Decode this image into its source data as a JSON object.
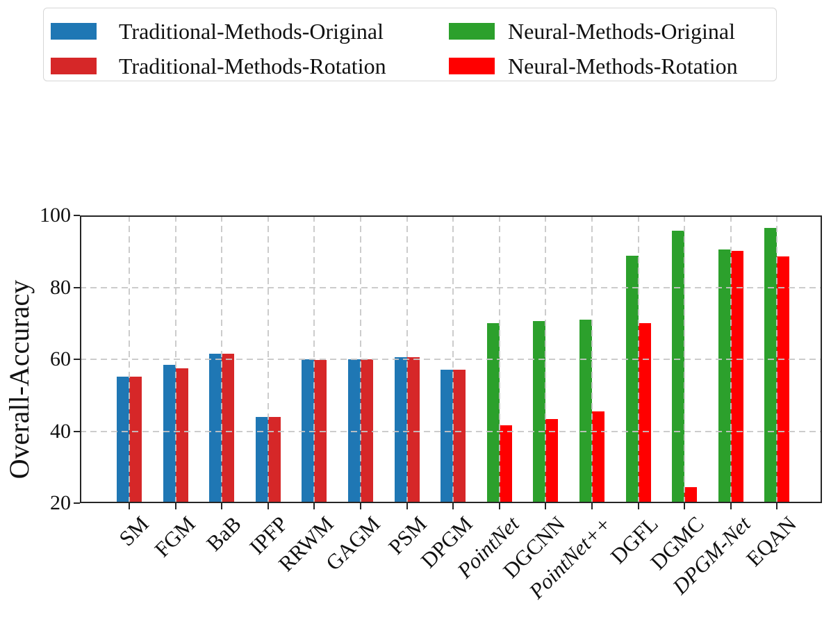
{
  "chart_data": {
    "type": "bar",
    "title": "",
    "xlabel": "",
    "ylabel": "Overall-Accuracy",
    "ylim": [
      20,
      100
    ],
    "yticks": [
      20,
      40,
      60,
      80,
      100
    ],
    "grid": "dashed, both axes, drawn over bars",
    "legend_position": "upper center, 2 columns, boxed",
    "categories": [
      {
        "label": "SM",
        "italic": false
      },
      {
        "label": "FGM",
        "italic": false
      },
      {
        "label": "BaB",
        "italic": false
      },
      {
        "label": "IPFP",
        "italic": false
      },
      {
        "label": "RRWM",
        "italic": false
      },
      {
        "label": "GAGM",
        "italic": false
      },
      {
        "label": "PSM",
        "italic": false
      },
      {
        "label": "DPGM",
        "italic": false
      },
      {
        "label": "PointNet",
        "italic": true
      },
      {
        "label": "DGCNN",
        "italic": false
      },
      {
        "label": "PointNet++",
        "italic": true
      },
      {
        "label": "DGFL",
        "italic": false
      },
      {
        "label": "DGMC",
        "italic": false
      },
      {
        "label": "DPGM-Net",
        "italic": true
      },
      {
        "label": "EQAN",
        "italic": false
      }
    ],
    "series": [
      {
        "name": "Traditional-Methods-Original",
        "color": "#1f77b4",
        "values": [
          55.2,
          58.5,
          61.5,
          44.0,
          60.0,
          60.0,
          60.5,
          57.1,
          null,
          null,
          null,
          null,
          null,
          null,
          null
        ]
      },
      {
        "name": "Traditional-Methods-Rotation",
        "color": "#d62728",
        "values": [
          55.2,
          57.4,
          61.5,
          44.0,
          59.9,
          60.0,
          60.5,
          57.1,
          null,
          null,
          null,
          null,
          null,
          null,
          null
        ]
      },
      {
        "name": "Neural-Methods-Original",
        "color": "#2ca02c",
        "values": [
          null,
          null,
          null,
          null,
          null,
          null,
          null,
          null,
          70.0,
          70.7,
          71.1,
          88.7,
          95.7,
          90.5,
          96.5
        ]
      },
      {
        "name": "Neural-Methods-Rotation",
        "color": "#ff0000",
        "values": [
          null,
          null,
          null,
          null,
          null,
          null,
          null,
          null,
          41.6,
          43.4,
          45.6,
          70.0,
          24.4,
          90.1,
          88.6
        ]
      }
    ],
    "legend_entries": [
      "Traditional-Methods-Original",
      "Traditional-Methods-Rotation",
      "Neural-Methods-Original",
      "Neural-Methods-Rotation"
    ]
  },
  "layout_colors": {
    "background": "#ffffff",
    "spine": "#262626",
    "grid": "#c6c6c6",
    "legend_border": "#d6d6d6"
  }
}
